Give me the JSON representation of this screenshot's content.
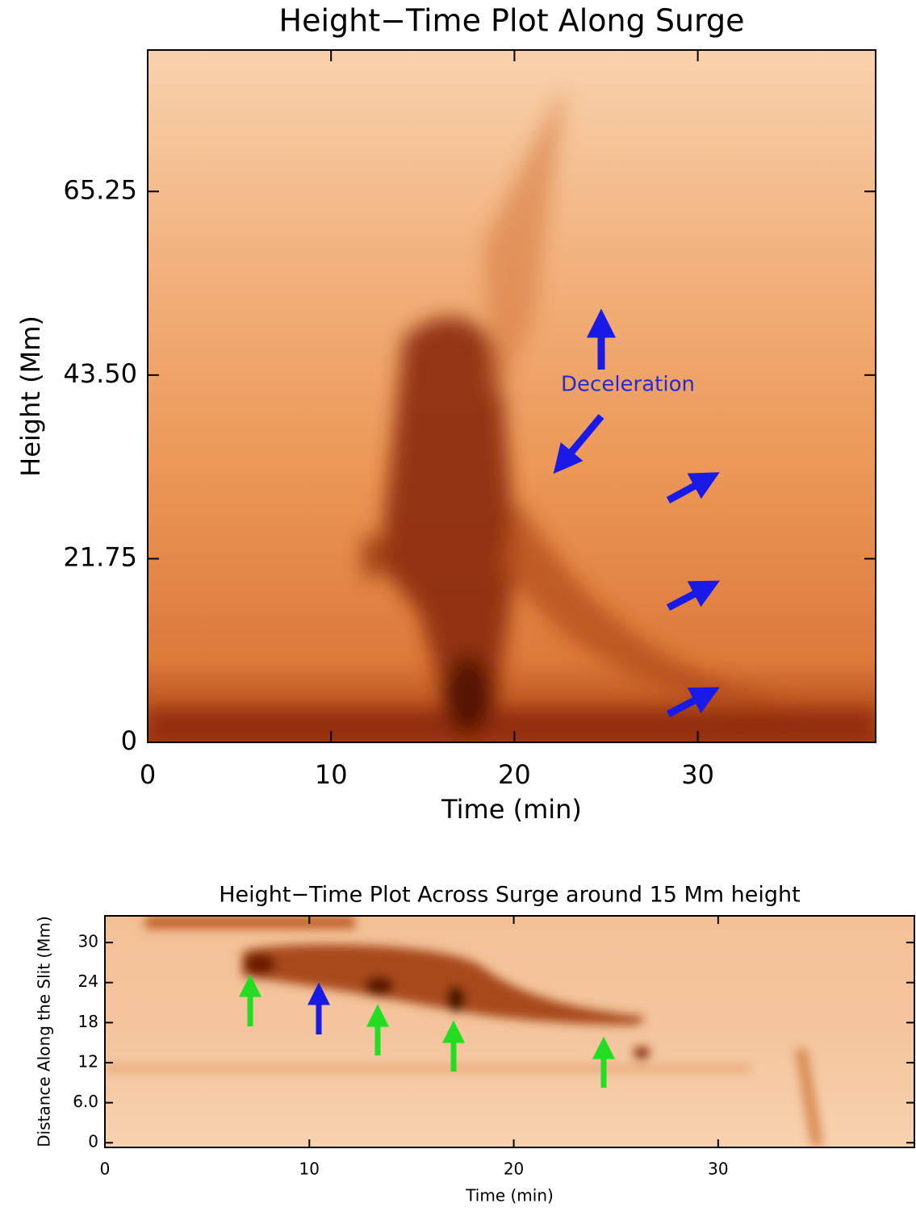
{
  "chart_data": [
    {
      "type": "image",
      "title": "Height−Time Plot Along Surge",
      "xlabel": "Time (min)",
      "ylabel": "Height (Mm)",
      "annotation": "Deceleration",
      "xlim": [
        0,
        39.7
      ],
      "xticks": [
        0,
        10,
        20,
        30
      ],
      "ylim": [
        0,
        82
      ],
      "yticks": [
        0,
        21.75,
        {
          "value": 43.5,
          "label": "43.50"
        },
        65.25
      ]
    },
    {
      "type": "image",
      "title": "Height−Time Plot Across Surge around 15 Mm height",
      "xlabel": "Time (min)",
      "ylabel": "Distance Along the Slit (Mm)",
      "xlim": [
        0,
        39.6
      ],
      "xticks": [
        0,
        10,
        20,
        30
      ],
      "ylim": [
        -0.7,
        34
      ],
      "yticks": [
        0,
        {
          "value": 6,
          "label": "6.0"
        },
        12,
        18,
        24,
        30
      ]
    }
  ]
}
